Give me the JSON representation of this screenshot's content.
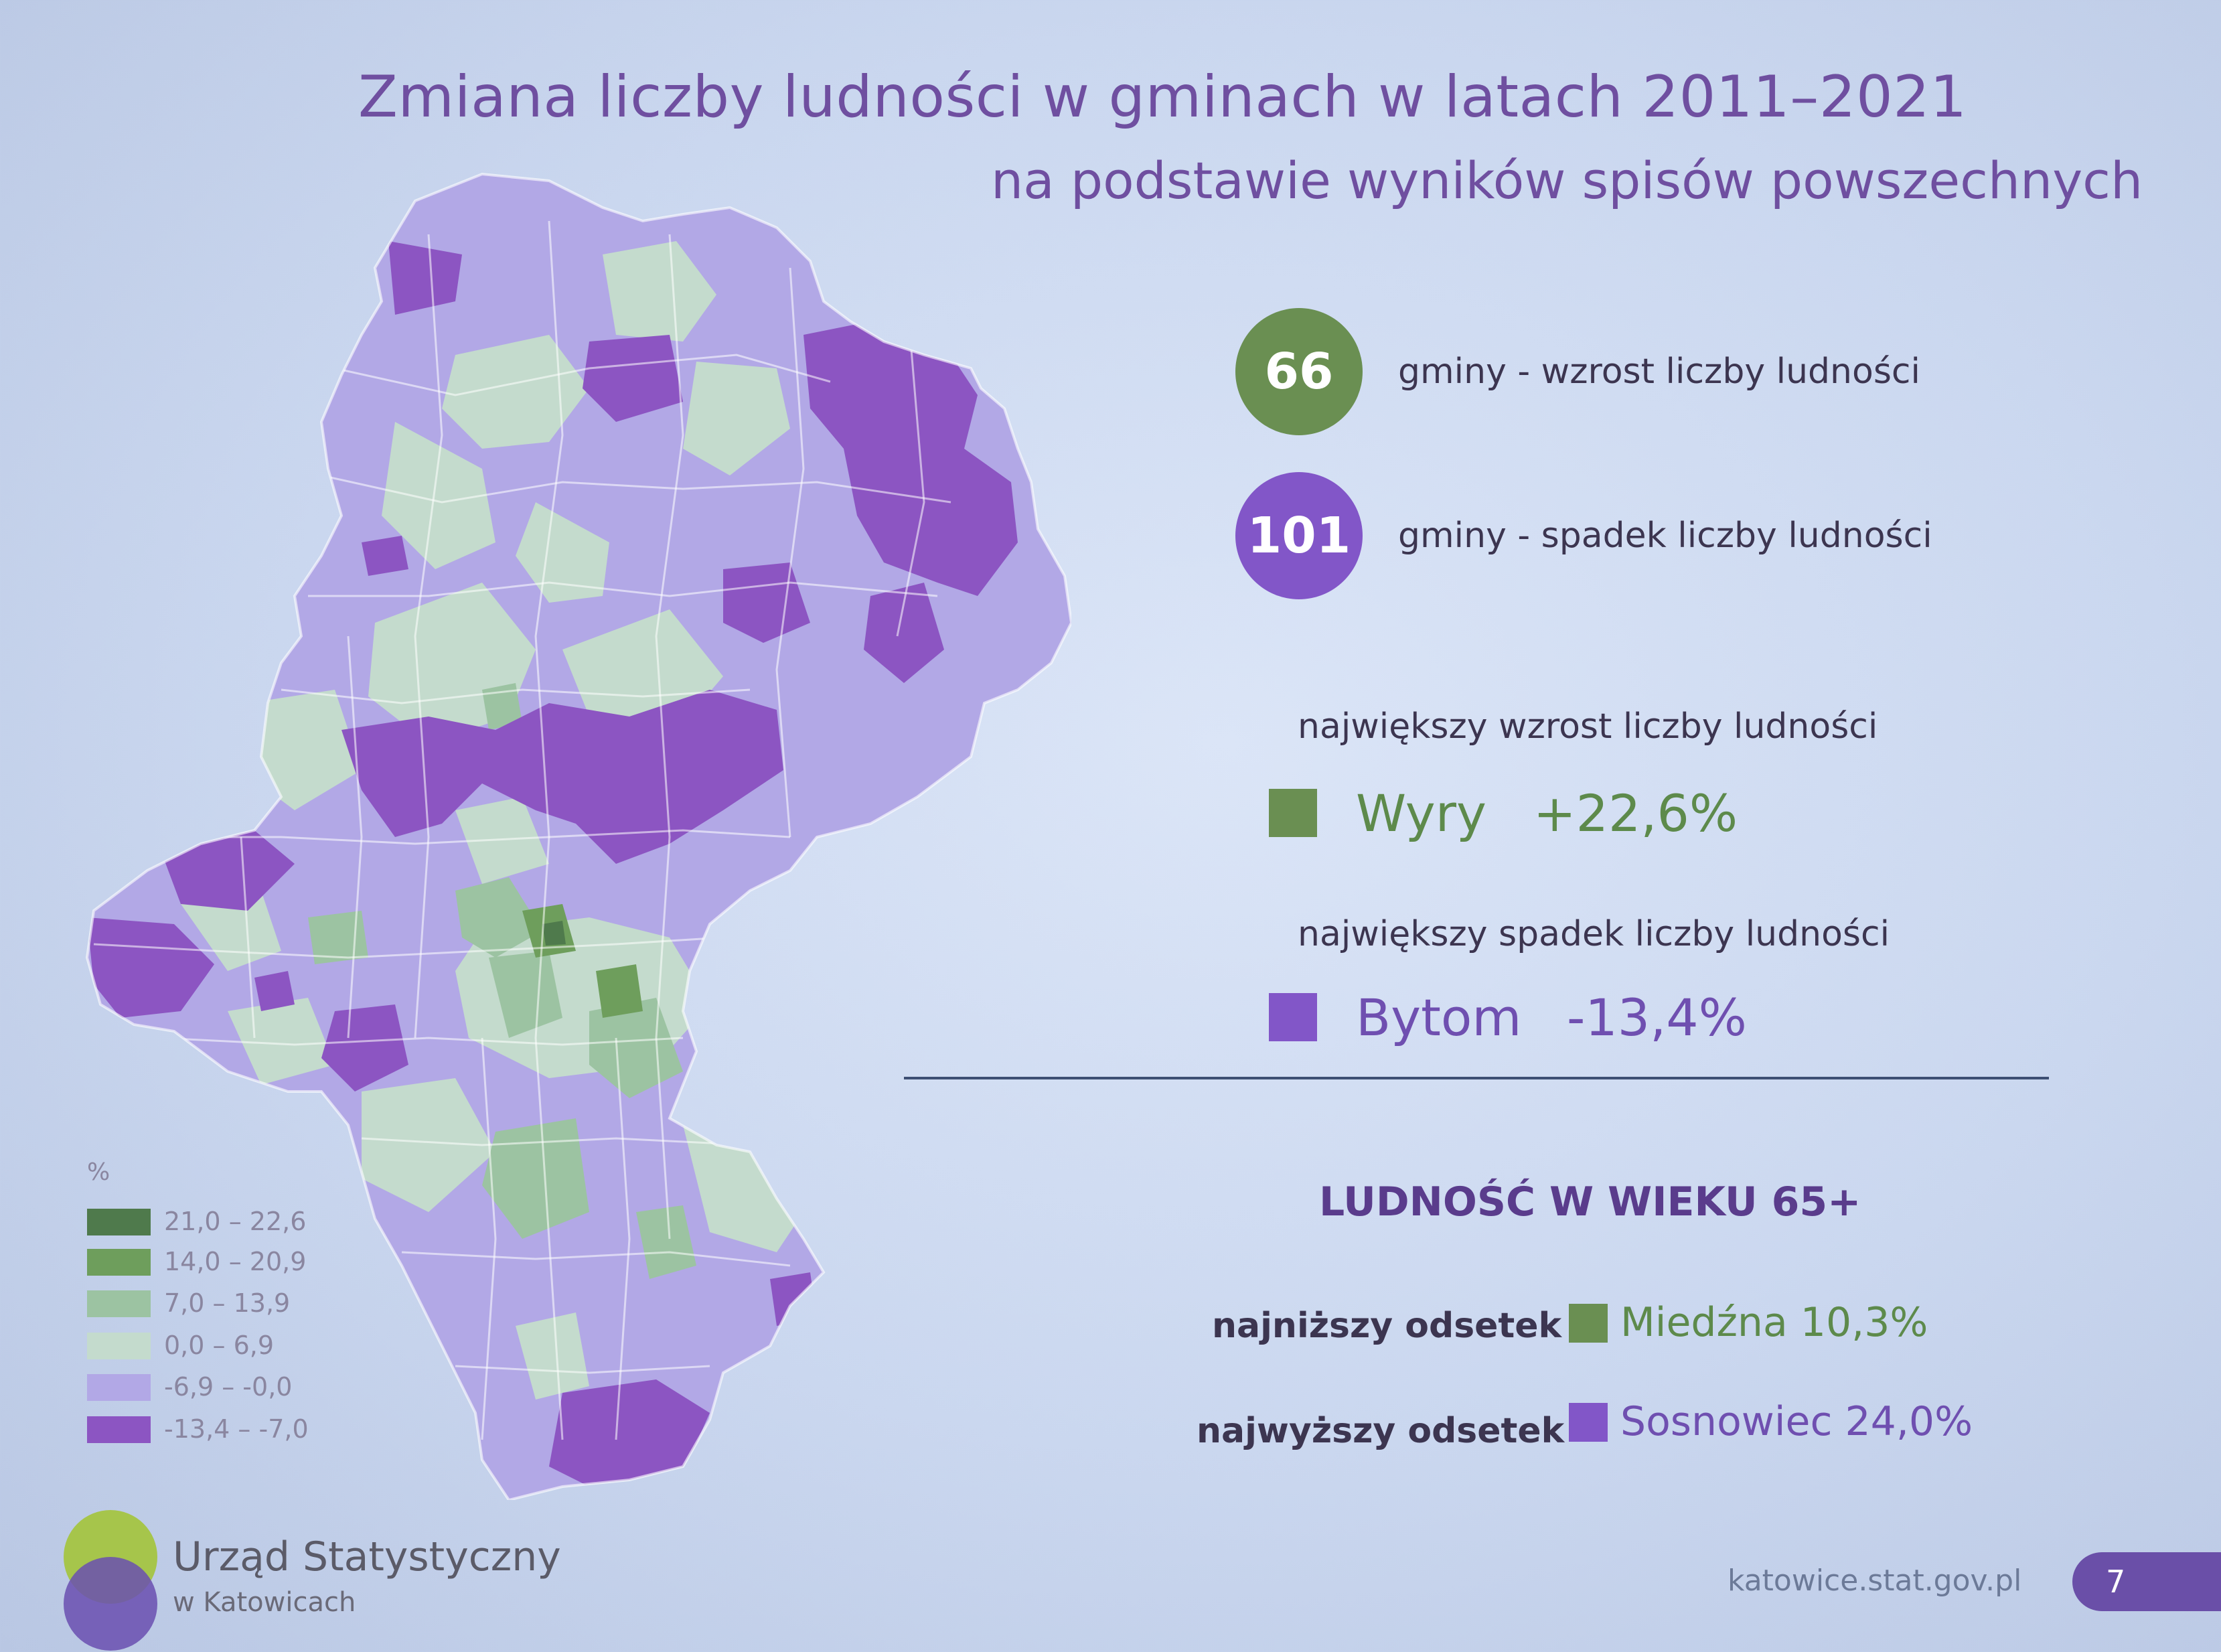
{
  "header": {
    "title": "Zmiana liczby ludności w gminach w latach 2011–2021",
    "subtitle": "na podstawie wyników spisów powszechnych"
  },
  "stats": {
    "increase": {
      "count": "66",
      "label": "gminy - wzrost liczby ludności",
      "color": "#6a8f52"
    },
    "decrease": {
      "count": "101",
      "label": "gminy - spadek liczby ludności",
      "color": "#8256c8"
    }
  },
  "largest_increase": {
    "heading": "największy wzrost liczby ludności",
    "name": "Wyry",
    "value": "+22,6%"
  },
  "largest_decrease": {
    "heading": "największy spadek liczby ludności",
    "name": "Bytom",
    "value": "-13,4%"
  },
  "age_section": {
    "title": "LUDNOŚĆ W WIEKU 65+",
    "lowest": {
      "label": "najniższy odsetek",
      "value": "Miedźna 10,3%"
    },
    "highest": {
      "label": "najwyższy odsetek",
      "value": "Sosnowiec 24,0%"
    }
  },
  "legend": {
    "unit": "%",
    "classes": [
      {
        "range": "21,0 – 22,6",
        "color": "#4f7a4c"
      },
      {
        "range": "14,0 – 20,9",
        "color": "#6e9e5c"
      },
      {
        "range": "7,0 – 13,9",
        "color": "#9cc3a2"
      },
      {
        "range": "0,0 – 6,9",
        "color": "#c4dbcd"
      },
      {
        "range": "-6,9 – -0,0",
        "color": "#b2a8e6"
      },
      {
        "range": "-13,4 – -7,0",
        "color": "#8c55c2"
      }
    ]
  },
  "footer": {
    "logo_line1": "Urząd Statystyczny",
    "logo_line2": "w Katowicach",
    "url": "katowice.stat.gov.pl",
    "page": "7"
  }
}
